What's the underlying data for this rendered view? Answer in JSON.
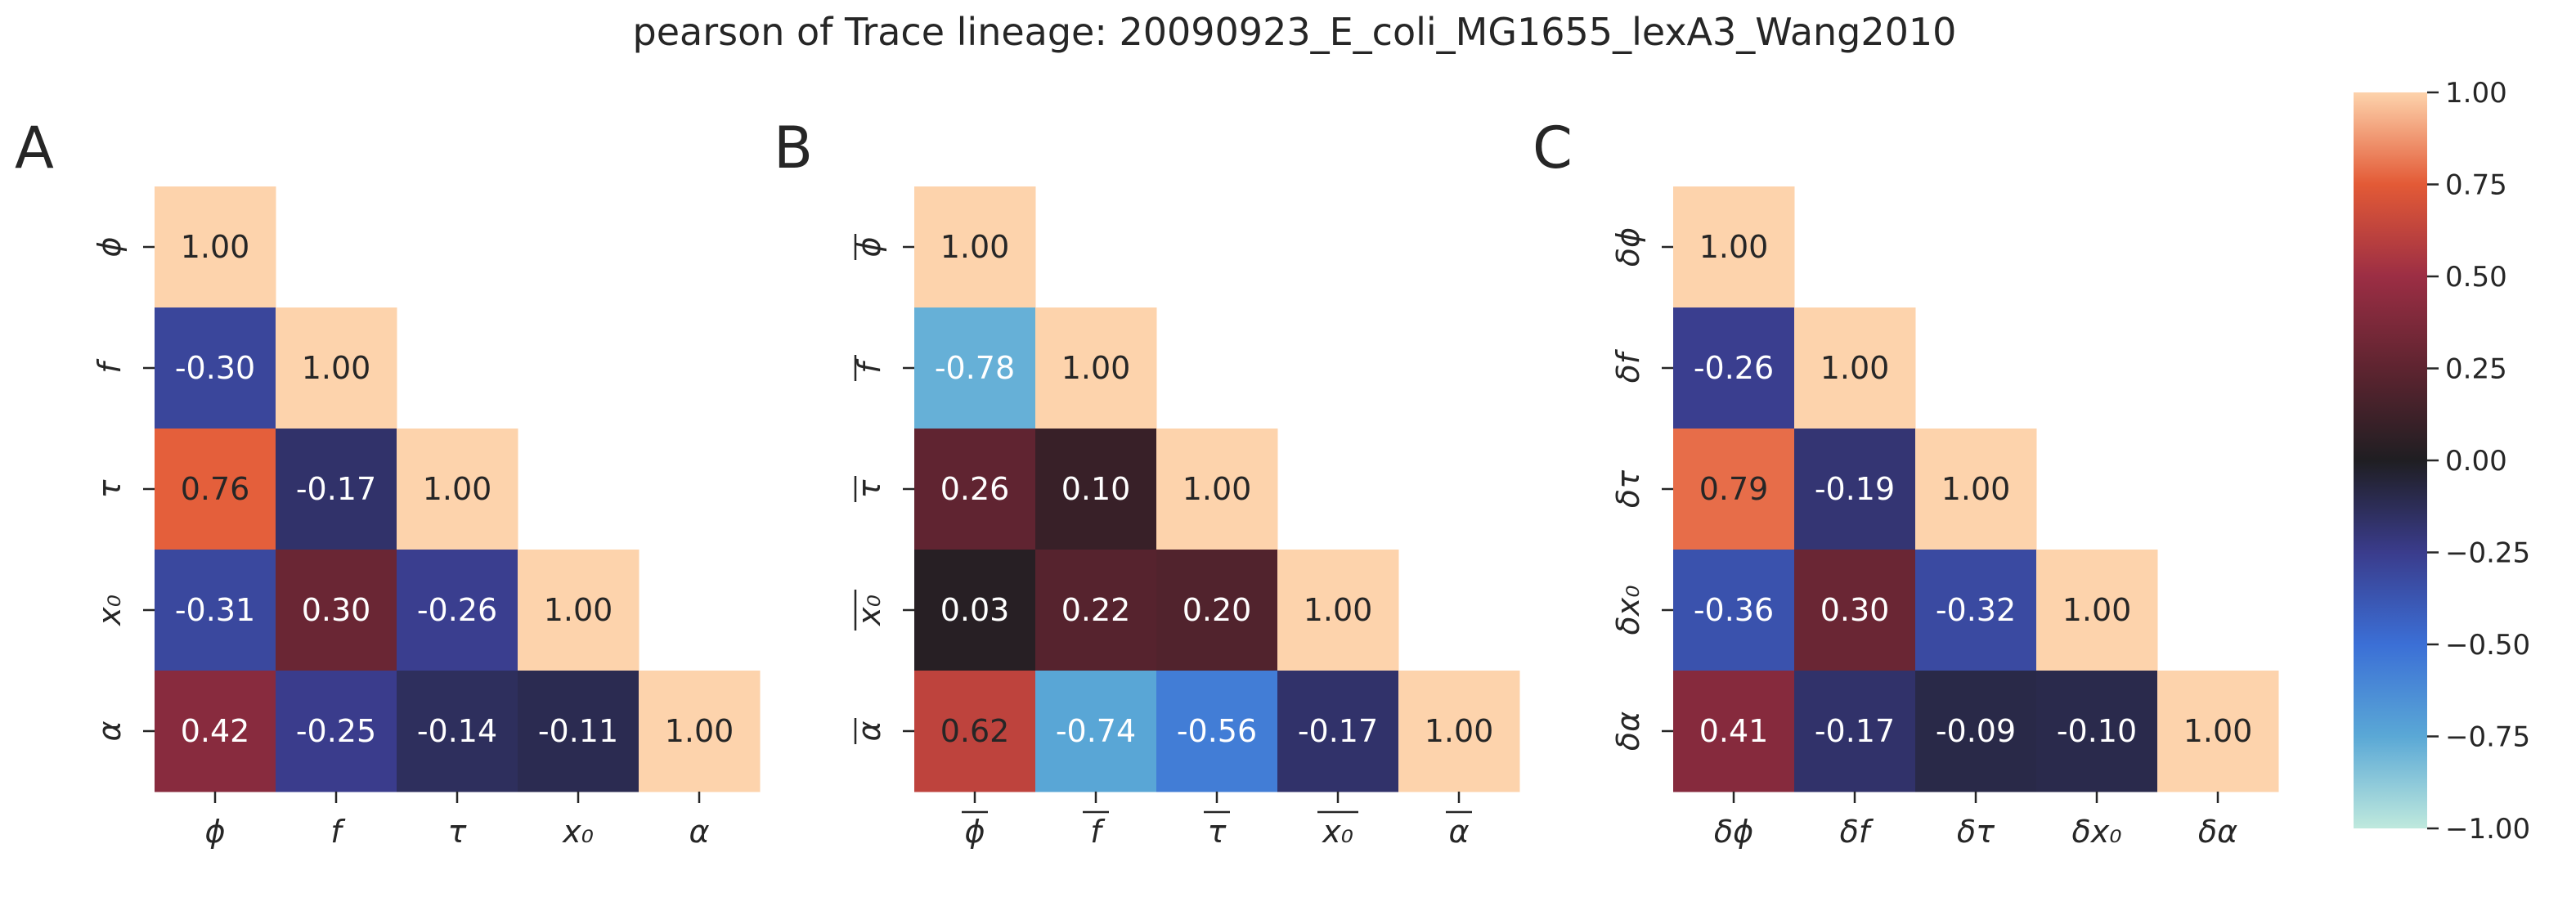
{
  "chart_data": {
    "type": "heatmap",
    "title": "pearson of Trace lineage: 20090923_E_coli_MG1655_lexA3_Wang2010",
    "panels": [
      {
        "label": "A",
        "variables": [
          "ϕ",
          "f",
          "τ",
          "x₀",
          "α"
        ],
        "overline": [
          false,
          false,
          false,
          false,
          false
        ],
        "values": [
          [
            1.0
          ],
          [
            -0.3,
            1.0
          ],
          [
            0.76,
            -0.17,
            1.0
          ],
          [
            -0.31,
            0.3,
            -0.26,
            1.0
          ],
          [
            0.42,
            -0.25,
            -0.14,
            -0.11,
            1.0
          ]
        ]
      },
      {
        "label": "B",
        "variables": [
          "ϕ",
          "f",
          "τ",
          "x₀",
          "α"
        ],
        "overline": [
          true,
          true,
          true,
          true,
          true
        ],
        "values": [
          [
            1.0
          ],
          [
            -0.78,
            1.0
          ],
          [
            0.26,
            0.1,
            1.0
          ],
          [
            0.03,
            0.22,
            0.2,
            1.0
          ],
          [
            0.62,
            -0.74,
            -0.56,
            -0.17,
            1.0
          ]
        ]
      },
      {
        "label": "C",
        "variables": [
          "δϕ",
          "δf",
          "δτ",
          "δx₀",
          "δα"
        ],
        "overline": [
          false,
          false,
          false,
          false,
          false
        ],
        "values": [
          [
            1.0
          ],
          [
            -0.26,
            1.0
          ],
          [
            0.79,
            -0.19,
            1.0
          ],
          [
            -0.36,
            0.3,
            -0.32,
            1.0
          ],
          [
            0.41,
            -0.17,
            -0.09,
            -0.1,
            1.0
          ]
        ]
      }
    ],
    "colorbar": {
      "vmin": -1.0,
      "vmax": 1.0,
      "ticks": [
        "1.00",
        "0.75",
        "0.50",
        "0.25",
        "0.00",
        "−0.25",
        "−0.50",
        "−0.75",
        "−1.00"
      ],
      "colormap": "icefire",
      "stops": [
        {
          "v": -1.0,
          "color": "#bfe9dd"
        },
        {
          "v": -0.75,
          "color": "#5aa8d6"
        },
        {
          "v": -0.5,
          "color": "#3b6fd6"
        },
        {
          "v": -0.25,
          "color": "#3a3c8c"
        },
        {
          "v": 0.0,
          "color": "#1f1e22"
        },
        {
          "v": 0.25,
          "color": "#5e2430"
        },
        {
          "v": 0.5,
          "color": "#9c2e44"
        },
        {
          "v": 0.75,
          "color": "#e35a36"
        },
        {
          "v": 1.0,
          "color": "#fdd3ac"
        }
      ]
    }
  }
}
